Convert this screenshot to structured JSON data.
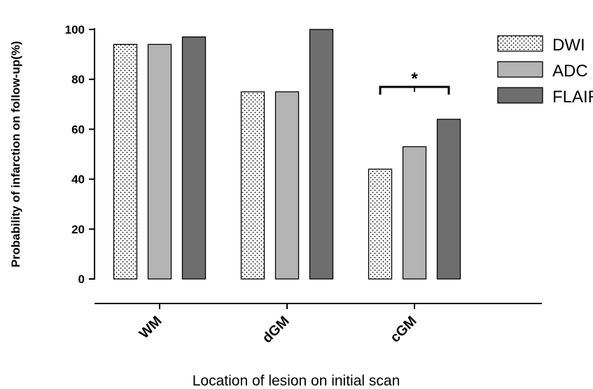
{
  "chart_data": {
    "type": "bar",
    "categories": [
      "WM",
      "dGM",
      "cGM"
    ],
    "series": [
      {
        "name": "DWI",
        "values": [
          94,
          75,
          44
        ]
      },
      {
        "name": "ADC",
        "values": [
          94,
          75,
          53
        ]
      },
      {
        "name": "FLAIR",
        "values": [
          97,
          100,
          64
        ]
      }
    ],
    "xlabel": "Location of lesion on initial scan",
    "ylabel": "Probability of infarction on follow-up(%)",
    "ylim": [
      0,
      100
    ],
    "yticks": [
      "0",
      "20",
      "40",
      "60",
      "80",
      "100"
    ],
    "grid": false,
    "legend_position": "top-right",
    "annotation": {
      "text": "*",
      "category": "cGM",
      "from_series": "DWI",
      "to_series": "FLAIR"
    },
    "colors": {
      "DWI": "#ffffff",
      "ADC": "#b4b4b4",
      "FLAIR": "#6e6e6e",
      "edge": "#000000"
    }
  }
}
